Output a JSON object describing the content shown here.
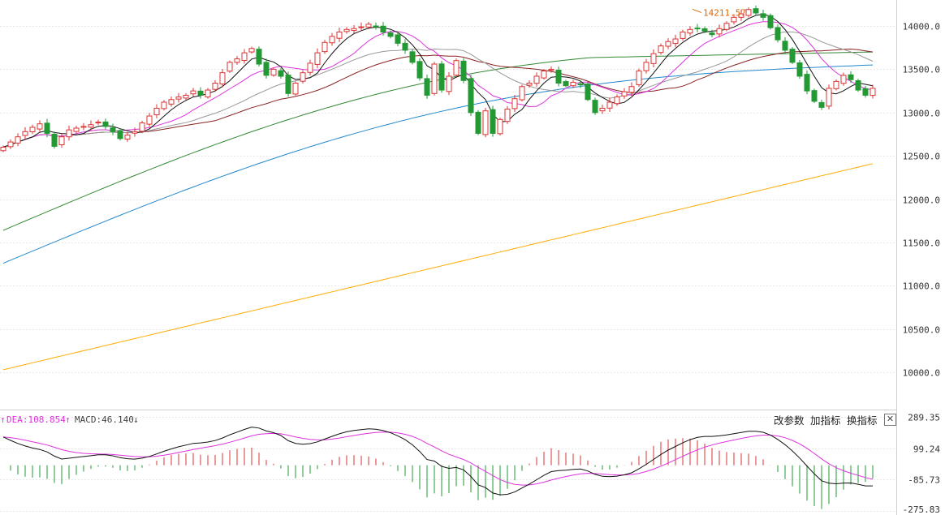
{
  "colors": {
    "up": "#dd3333",
    "down": "#229933",
    "ma5": "#111111",
    "ma10": "#dd33dd",
    "ma20": "#999999",
    "ma30": "#882222",
    "ma60": "#338833",
    "ma120": "#2288cc",
    "ma250": "#ffaa00",
    "dif": "#111111",
    "dea": "#dd33dd",
    "grid": "#e6e6e6",
    "peak": "#dd6600"
  },
  "toolbar": {
    "change_params": "改参数",
    "add_indicator": "加指标",
    "switch_indicator": "换指标",
    "close_icon": "close-icon"
  },
  "indicator_panel": {
    "dea_label": "DEA:108.854",
    "dea_arrow": "↑",
    "macd_label": "MACD:46.140",
    "macd_arrow": "↓"
  },
  "chart_data": [
    {
      "type": "candlestick",
      "title": "",
      "y_ticks": [
        14000.0,
        13500.0,
        13000.0,
        12500.0,
        12000.0,
        11500.0,
        11000.0,
        10500.0,
        10000.0
      ],
      "y_tick_labels": [
        "14000.0",
        "13500.0",
        "13000.0",
        "12500.0",
        "12000.0",
        "11500.0",
        "11000.0",
        "10500.0",
        "10000.0"
      ],
      "ylim": [
        9570,
        14300
      ],
      "grid": true,
      "candle_count": 120,
      "closes": [
        12600,
        12660,
        12720,
        12780,
        12830,
        12870,
        12760,
        12610,
        12720,
        12800,
        12820,
        12840,
        12860,
        12890,
        12840,
        12780,
        12700,
        12740,
        12780,
        12880,
        12960,
        13050,
        13120,
        13150,
        13180,
        13200,
        13250,
        13200,
        13260,
        13340,
        13460,
        13580,
        13620,
        13690,
        13740,
        13560,
        13430,
        13500,
        13420,
        13220,
        13340,
        13460,
        13570,
        13690,
        13810,
        13880,
        13930,
        13960,
        13970,
        13990,
        14020,
        13990,
        13930,
        13880,
        13800,
        13720,
        13580,
        13400,
        13200,
        13560,
        13260,
        13420,
        13600,
        13370,
        13000,
        12760,
        13020,
        12760,
        12920,
        13040,
        13160,
        13300,
        13340,
        13420,
        13480,
        13500,
        13340,
        13310,
        13350,
        13320,
        13150,
        13000,
        13050,
        13120,
        13180,
        13240,
        13300,
        13480,
        13580,
        13680,
        13770,
        13820,
        13850,
        13930,
        13960,
        13970,
        13940,
        13900,
        13970,
        14030,
        14100,
        14140,
        14190,
        14150,
        14100,
        13980,
        13840,
        13720,
        13580,
        13420,
        13250,
        13130,
        13060,
        13280,
        13360,
        13430,
        13380,
        13260,
        13200,
        13280
      ],
      "annotation": {
        "label": "14211.57",
        "value": 14211.57,
        "candle_index": 94
      },
      "series": [
        {
          "name": "",
          "values_ref": "ma5"
        },
        {
          "name": "",
          "values_ref": "ma10"
        },
        {
          "name": "",
          "values_ref": "ma20"
        },
        {
          "name": "",
          "values_ref": "ma30"
        },
        {
          "name": "",
          "values_ref": "ma60",
          "endpoints": [
            11640,
            13710
          ]
        },
        {
          "name": "",
          "values_ref": "ma120",
          "endpoints": [
            11260,
            13550
          ]
        },
        {
          "name": "",
          "values_ref": "ma250",
          "endpoints": [
            10030,
            12410
          ]
        }
      ]
    },
    {
      "type": "bar+line",
      "title": "MACD",
      "y_ticks": [
        289.35,
        99.24,
        -85.73,
        -275.83
      ],
      "y_tick_labels": [
        "289.35",
        "99.24",
        "-85.73",
        "-275.83"
      ],
      "ylim": [
        -300,
        330
      ],
      "series": [
        {
          "name": "DEA",
          "last_value": 108.854
        },
        {
          "name": "MACD",
          "last_value": 46.14
        }
      ]
    }
  ]
}
